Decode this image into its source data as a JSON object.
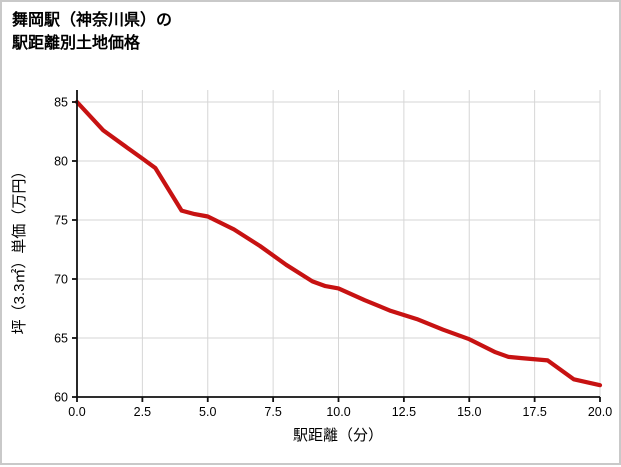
{
  "title": {
    "line1": "舞岡駅（神奈川県）の",
    "line2": "駅距離別土地価格"
  },
  "chart_data": {
    "type": "line",
    "title": "舞岡駅（神奈川県）の駅距離別土地価格",
    "xlabel": "駅距離（分）",
    "ylabel": "坪（3.3㎡）単価（万円）",
    "xlim": [
      0,
      20
    ],
    "ylim": [
      60,
      85
    ],
    "x_tick_values": [
      0,
      2.5,
      5,
      7.5,
      10,
      12.5,
      15,
      17.5,
      20
    ],
    "x_tick_labels": [
      "0.0",
      "2.5",
      "5.0",
      "7.5",
      "10.0",
      "12.5",
      "15.0",
      "17.5",
      "20.0"
    ],
    "y_tick_values": [
      60,
      65,
      70,
      75,
      80,
      85
    ],
    "y_tick_labels": [
      "60",
      "65",
      "70",
      "75",
      "80",
      "85"
    ],
    "grid": true,
    "legend": "none",
    "line_color": "#c71212",
    "series": [
      {
        "name": "坪単価",
        "x": [
          0,
          1,
          2,
          2.5,
          3,
          4,
          4.5,
          5,
          6,
          7,
          8,
          9,
          9.5,
          10,
          11,
          12,
          13,
          14,
          15,
          16,
          16.5,
          17,
          18,
          19,
          20
        ],
        "y": [
          85,
          82.6,
          81.0,
          80.2,
          79.4,
          75.8,
          75.5,
          75.3,
          74.2,
          72.8,
          71.2,
          69.8,
          69.4,
          69.2,
          68.2,
          67.3,
          66.6,
          65.7,
          64.9,
          63.8,
          63.4,
          63.3,
          63.1,
          61.5,
          61.0
        ]
      }
    ]
  },
  "colors": {
    "grid": "#d6d6d6",
    "axis": "#111111",
    "border": "#c9c9c9",
    "background": "#ffffff",
    "text": "#000000"
  }
}
